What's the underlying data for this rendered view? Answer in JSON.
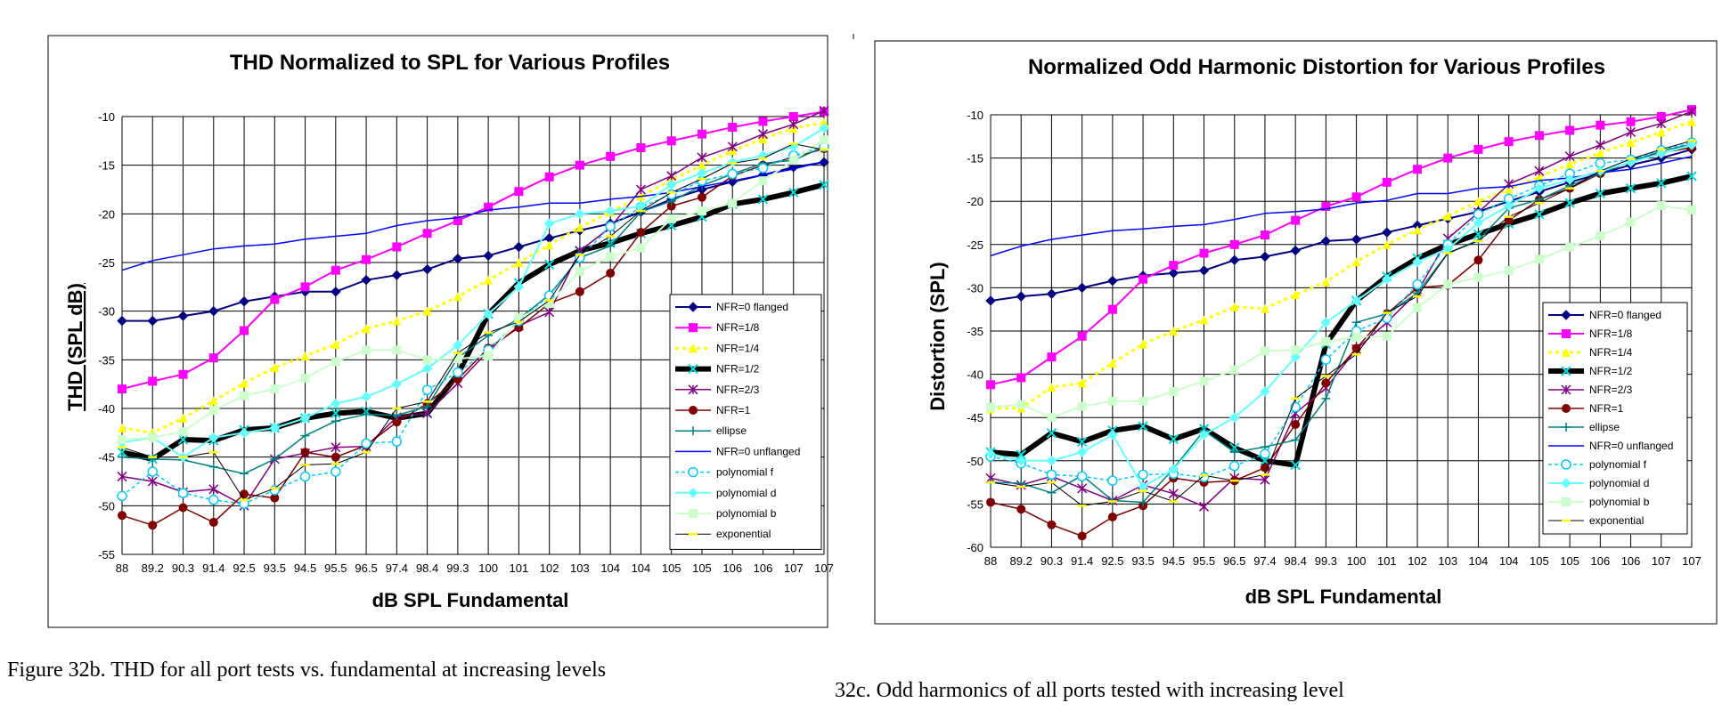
{
  "captions": {
    "left": "Figure 32b. THD for all port tests vs. fundamental at increasing levels",
    "right": "32c. Odd harmonics of all ports tested with increasing level"
  },
  "series_styles": [
    {
      "name": "NFR=0 flanged",
      "color": "#000080",
      "width": 2,
      "dash": "",
      "marker": "diamond"
    },
    {
      "name": "NFR=1/8",
      "color": "#ff00ff",
      "width": 2,
      "dash": "",
      "marker": "square"
    },
    {
      "name": "NFR=1/4",
      "color": "#ffff00",
      "width": 3,
      "dash": "4,4",
      "marker": "triangle"
    },
    {
      "name": "NFR=1/2",
      "color": "#000000",
      "width": 6,
      "dash": "",
      "marker": "x",
      "marker_color": "#00e0e0"
    },
    {
      "name": "NFR=2/3",
      "color": "#800080",
      "width": 1.5,
      "dash": "",
      "marker": "star"
    },
    {
      "name": "NFR=1",
      "color": "#800000",
      "width": 1.5,
      "dash": "",
      "marker": "circle"
    },
    {
      "name": "ellipse",
      "color": "#008080",
      "width": 1.5,
      "dash": "",
      "marker": "plus"
    },
    {
      "name": "NFR=0 unflanged",
      "color": "#0000ff",
      "width": 1.5,
      "dash": "",
      "marker": "none"
    },
    {
      "name": "polynomial f",
      "color": "#00ccff",
      "width": 1.5,
      "dash": "4,3",
      "marker": "opencircle"
    },
    {
      "name": "polynomial d",
      "color": "#66ffff",
      "width": 2,
      "dash": "",
      "marker": "diamond"
    },
    {
      "name": "polynomial b",
      "color": "#ccffcc",
      "width": 2,
      "dash": "",
      "marker": "square"
    },
    {
      "name": "exponential",
      "color": "#000000",
      "width": 1,
      "dash": "",
      "marker": "tick",
      "marker_color": "#ffff00"
    }
  ],
  "chart_data": [
    {
      "type": "line",
      "title": "THD Normalized to SPL for Various Profiles",
      "xlabel": "dB SPL Fundamental",
      "ylabel": "THD (SPL dB)",
      "ylim": [
        -55,
        -10
      ],
      "yticks": [
        -10,
        -15,
        -20,
        -25,
        -30,
        -35,
        -40,
        -45,
        -50,
        -55
      ],
      "grid": true,
      "legend": "right",
      "categories": [
        "88",
        "89.2",
        "90.3",
        "91.4",
        "92.5",
        "93.5",
        "94.5",
        "95.5",
        "96.5",
        "97.4",
        "98.4",
        "99.3",
        "100",
        "101",
        "102",
        "103",
        "104",
        "104",
        "105",
        "105",
        "106",
        "106",
        "107",
        "107"
      ],
      "series": [
        {
          "name": "NFR=0 flanged",
          "values": [
            -31,
            -31,
            -30.5,
            -30,
            -29,
            -28.5,
            -28,
            -28,
            -26.8,
            -26.3,
            -25.7,
            -24.6,
            -24.3,
            -23.4,
            -22.5,
            -21.7,
            -21,
            -19.8,
            -18.5,
            -17.5,
            -16.7,
            -16,
            -15.2,
            -14.7
          ]
        },
        {
          "name": "NFR=1/8",
          "values": [
            -38,
            -37.2,
            -36.5,
            -34.8,
            -32,
            -28.8,
            -27.5,
            -25.8,
            -24.7,
            -23.4,
            -22,
            -20.7,
            -19.3,
            -17.7,
            -16.2,
            -15,
            -14.1,
            -13.2,
            -12.5,
            -11.8,
            -11.1,
            -10.5,
            -10,
            -9.5
          ]
        },
        {
          "name": "NFR=1/4",
          "values": [
            -42,
            -42.5,
            -41,
            -39.2,
            -37.4,
            -35.8,
            -34.6,
            -33.4,
            -31.8,
            -31,
            -30,
            -28.5,
            -26.8,
            -25,
            -23.2,
            -21.4,
            -19.8,
            -18.2,
            -16.5,
            -15,
            -13.5,
            -12.3,
            -11.2,
            -10.6
          ]
        },
        {
          "name": "NFR=1/2",
          "values": [
            -44.5,
            -45.2,
            -43.2,
            -43.3,
            -42.2,
            -42,
            -41,
            -40.5,
            -40.3,
            -41,
            -40.5,
            -36.5,
            -30.3,
            -27.1,
            -25.2,
            -23.8,
            -23,
            -22,
            -21.2,
            -20.3,
            -19,
            -18.5,
            -17.8,
            -17
          ]
        },
        {
          "name": "NFR=2/3",
          "values": [
            -47,
            -47.5,
            -48.6,
            -48.3,
            -50,
            -45.2,
            -44.6,
            -44,
            -43.9,
            -40.9,
            -40.5,
            -37.4,
            -34.1,
            -31.5,
            -30.1,
            -23.8,
            -21.4,
            -17.5,
            -16.1,
            -14.2,
            -13.1,
            -11.8,
            -10.8,
            -9.4
          ]
        },
        {
          "name": "NFR=1",
          "values": [
            -51,
            -52,
            -50.2,
            -51.7,
            -48.8,
            -49.2,
            -44.5,
            -45,
            -43.8,
            -41.4,
            -39.5,
            -37,
            -33.8,
            -31.7,
            -29.2,
            -28,
            -26.1,
            -21.9,
            -19.2,
            -18.3,
            -16.1,
            -15,
            -14.2,
            -13.3
          ]
        },
        {
          "name": "ellipse",
          "values": [
            -45,
            -45.2,
            -45.3,
            -46,
            -46.7,
            -45.2,
            -42.8,
            -41.3,
            -40.6,
            -40.7,
            -39.8,
            -34.8,
            -32.5,
            -30.8,
            -28.3,
            -24.5,
            -23.3,
            -19.8,
            -18.7,
            -17.1,
            -15.9,
            -14.8,
            -14.5,
            -13.1
          ]
        },
        {
          "name": "NFR=0 unflanged",
          "values": [
            -25.8,
            -24.8,
            -24.2,
            -23.6,
            -23.3,
            -23.1,
            -22.6,
            -22.3,
            -22,
            -21.2,
            -20.7,
            -20.4,
            -19.6,
            -19.3,
            -18.9,
            -18.9,
            -18.5,
            -18.2,
            -17.8,
            -17.2,
            -16.6,
            -16,
            -15.4,
            -14.6
          ]
        },
        {
          "name": "polynomial f",
          "values": [
            -49,
            -46.5,
            -48.7,
            -49.4,
            -49.8,
            -48.4,
            -47,
            -46.5,
            -43.6,
            -43.4,
            -38.1,
            -36.3,
            -34,
            -31,
            -28.4,
            -24.5,
            -21.3,
            -19.3,
            -18,
            -16.6,
            -15.9,
            -15.3,
            -14,
            -13.1
          ]
        },
        {
          "name": "polynomial d",
          "values": [
            -43.5,
            -43,
            -45,
            -43,
            -42.5,
            -42,
            -41,
            -39.5,
            -38.8,
            -37.5,
            -35.9,
            -33.5,
            -30.3,
            -27.5,
            -21,
            -20,
            -19.7,
            -19.2,
            -17,
            -15.8,
            -14.7,
            -14,
            -13.1,
            -11.2
          ]
        },
        {
          "name": "polynomial b",
          "values": [
            -43.2,
            -43,
            -42.4,
            -40.2,
            -38.7,
            -38,
            -36.9,
            -35.2,
            -34,
            -34,
            -35,
            -34.9,
            -34.6,
            -30.7,
            -29.2,
            -25.9,
            -24.4,
            -23.5,
            -20.5,
            -19.7,
            -18.9,
            -16.6,
            -14.5,
            -12.4
          ]
        },
        {
          "name": "exponential",
          "values": [
            -44,
            -45,
            -45,
            -44.5,
            -49.4,
            -48.2,
            -45.8,
            -45.7,
            -44.5,
            -40,
            -39.3,
            -34.3,
            -32.2,
            -31.1,
            -28.9,
            -24.2,
            -22.3,
            -19.7,
            -17.8,
            -16.4,
            -14.8,
            -14.3,
            -12.8,
            -13.4
          ]
        }
      ]
    },
    {
      "type": "line",
      "title": "Normalized Odd Harmonic Distortion for Various Profiles",
      "xlabel": "dB SPL Fundamental",
      "ylabel": "Distortion (SPL)",
      "ylim": [
        -60,
        -10
      ],
      "yticks": [
        -10,
        -15,
        -20,
        -25,
        -30,
        -35,
        -40,
        -45,
        -50,
        -55,
        -60
      ],
      "grid": true,
      "legend": "bottom-right",
      "categories": [
        "88",
        "89.2",
        "90.3",
        "91.4",
        "92.5",
        "93.5",
        "94.5",
        "95.5",
        "96.5",
        "97.4",
        "98.4",
        "99.3",
        "100",
        "101",
        "102",
        "103",
        "104",
        "104",
        "105",
        "105",
        "106",
        "106",
        "107",
        "107"
      ],
      "series": [
        {
          "name": "NFR=0 flanged",
          "values": [
            -31.5,
            -31,
            -30.7,
            -30,
            -29.2,
            -28.6,
            -28.3,
            -28,
            -26.8,
            -26.4,
            -25.7,
            -24.6,
            -24.4,
            -23.6,
            -22.8,
            -22,
            -21.2,
            -20,
            -18.9,
            -17.8,
            -16.8,
            -15.8,
            -15,
            -14
          ]
        },
        {
          "name": "NFR=1/8",
          "values": [
            -41.2,
            -40.4,
            -38,
            -35.6,
            -32.5,
            -29,
            -27.4,
            -26,
            -25,
            -23.9,
            -22.2,
            -20.6,
            -19.5,
            -17.8,
            -16.3,
            -15,
            -14,
            -13.1,
            -12.4,
            -11.8,
            -11.2,
            -10.8,
            -10.2,
            -9.4
          ]
        },
        {
          "name": "NFR=1/4",
          "values": [
            -44,
            -43.9,
            -41.5,
            -41,
            -38.7,
            -36.5,
            -35,
            -33.7,
            -32.2,
            -32.4,
            -30.8,
            -29.3,
            -27,
            -25,
            -23.3,
            -21.7,
            -20,
            -18.6,
            -17.2,
            -15.7,
            -14.4,
            -13.2,
            -12,
            -10.8
          ]
        },
        {
          "name": "NFR=1/2",
          "values": [
            -49,
            -49.3,
            -46.8,
            -47.8,
            -46.5,
            -46,
            -47.5,
            -46.3,
            -48.5,
            -50,
            -50.5,
            -36.5,
            -31.5,
            -28.7,
            -26.6,
            -25,
            -23.8,
            -22.6,
            -21.5,
            -20.2,
            -19.1,
            -18.5,
            -17.9,
            -17.1
          ]
        },
        {
          "name": "NFR=2/3",
          "values": [
            -52,
            -52.8,
            -51.8,
            -53.2,
            -54.6,
            -52.8,
            -53.8,
            -55.3,
            -52,
            -52.2,
            -44.5,
            -41.6,
            -37.1,
            -34,
            -30.5,
            -24.3,
            -21.3,
            -18,
            -16.5,
            -14.8,
            -13.5,
            -12,
            -11,
            -9.6
          ]
        },
        {
          "name": "NFR=1",
          "values": [
            -54.8,
            -55.6,
            -57.4,
            -58.7,
            -56.5,
            -55.2,
            -52,
            -52.5,
            -52.3,
            -50.8,
            -45.8,
            -41,
            -37,
            -33,
            -30,
            -29.7,
            -26.8,
            -22.2,
            -19.8,
            -18.5,
            -16.8,
            -15.4,
            -14.4,
            -13.8
          ]
        },
        {
          "name": "ellipse",
          "values": [
            -52.5,
            -52.6,
            -53.7,
            -51.7,
            -54.6,
            -54.8,
            -50.9,
            -46.5,
            -49,
            -48.4,
            -47.6,
            -42.8,
            -34,
            -33,
            -30.6,
            -26,
            -24.5,
            -20.8,
            -19.8,
            -18.2,
            -16.8,
            -15.4,
            -14.2,
            -13.4
          ]
        },
        {
          "name": "NFR=0 unflanged",
          "values": [
            -26.3,
            -25.2,
            -24.4,
            -23.9,
            -23.4,
            -23.2,
            -22.9,
            -22.7,
            -22.1,
            -21.4,
            -21.2,
            -20.9,
            -20.2,
            -19.9,
            -19.1,
            -19.1,
            -18.5,
            -18.3,
            -17.6,
            -17.3,
            -16.7,
            -16.3,
            -15.6,
            -14.8
          ]
        },
        {
          "name": "polynomial f",
          "values": [
            -49.5,
            -50.3,
            -51.6,
            -51.8,
            -52.3,
            -51.6,
            -51.5,
            -51.9,
            -50.6,
            -49.2,
            -43.8,
            -38.3,
            -35,
            -33.5,
            -29.6,
            -25,
            -21.5,
            -19.7,
            -18.2,
            -16.8,
            -15.6,
            -15.2,
            -14.1,
            -13.2
          ]
        },
        {
          "name": "polynomial d",
          "values": [
            -49.2,
            -50,
            -50,
            -49,
            -47,
            -53,
            -51,
            -47,
            -45,
            -42,
            -38,
            -34,
            -31.5,
            -29,
            -27,
            -25.5,
            -22.5,
            -20.5,
            -18.5,
            -17.5,
            -16.5,
            -15.5,
            -14.5,
            -13.5
          ]
        },
        {
          "name": "polynomial b",
          "values": [
            -43.8,
            -43.5,
            -45,
            -43.7,
            -43.1,
            -43.1,
            -42,
            -40.8,
            -39.5,
            -37.3,
            -37.2,
            -36.2,
            -35.7,
            -35.6,
            -32.3,
            -29.6,
            -28.8,
            -28,
            -26.7,
            -25.3,
            -24,
            -22.4,
            -20.5,
            -21
          ]
        },
        {
          "name": "exponential",
          "values": [
            -52.5,
            -53,
            -52.5,
            -55.2,
            -54.7,
            -53.5,
            -54.7,
            -51.7,
            -52.3,
            -51.6,
            -42.8,
            -40.2,
            -37.7,
            -32.9,
            -31,
            -26,
            -24.6,
            -21.8,
            -20.2,
            -18.5,
            -16.5,
            -15.1,
            -14,
            -13
          ]
        }
      ]
    }
  ]
}
